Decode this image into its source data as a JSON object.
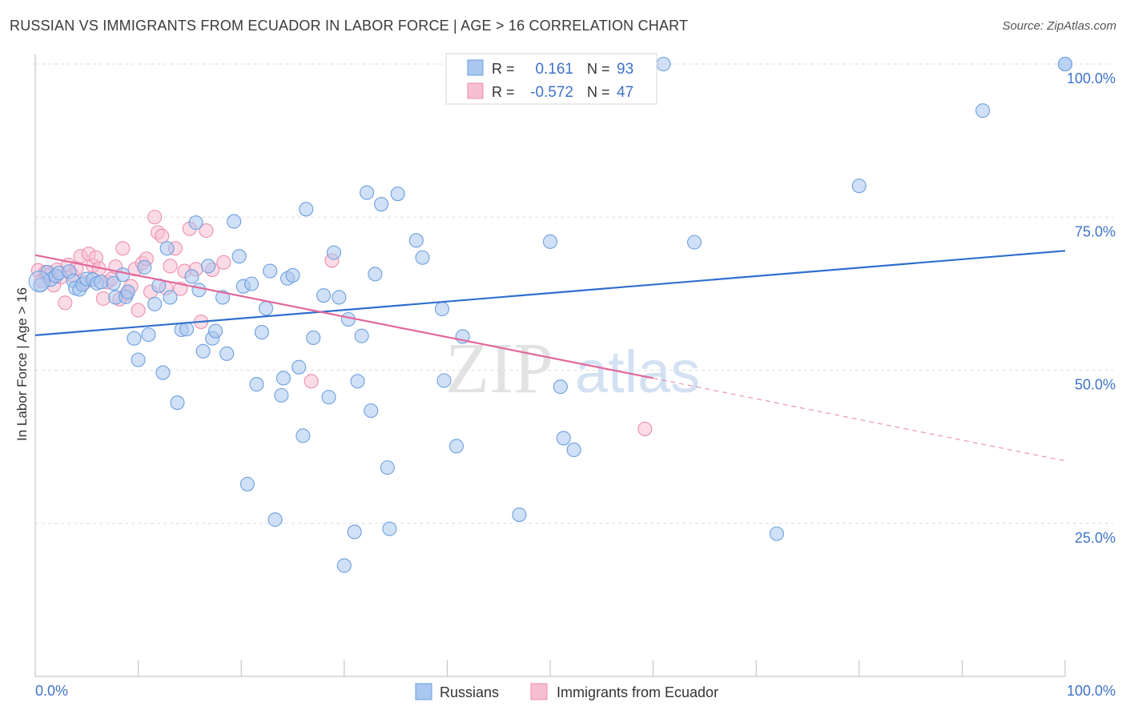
{
  "header": {
    "title": "RUSSIAN VS IMMIGRANTS FROM ECUADOR IN LABOR FORCE | AGE > 16 CORRELATION CHART",
    "source": "Source: ZipAtlas.com"
  },
  "watermark": {
    "zip": "ZIP",
    "atlas": "atlas"
  },
  "legend_box": {
    "rows": [
      {
        "r_label": "R =",
        "r_value": "0.161",
        "n_label": "N =",
        "n_value": "93"
      },
      {
        "r_label": "R =",
        "r_value": "-0.572",
        "n_label": "N =",
        "n_value": "47"
      }
    ]
  },
  "colors": {
    "russians_fill": "#a9c7ef",
    "russians_stroke": "#6d9fdf",
    "russians_line": "#2f6fcf",
    "ecuador_fill": "#f7bfd1",
    "ecuador_stroke": "#ec8fae",
    "ecuador_line": "#e2689a",
    "axis_label": "#3f73c9",
    "grid": "#dddddd"
  },
  "chart_data": {
    "type": "scatter",
    "ylabel": "In Labor Force | Age > 16",
    "xlim": [
      0,
      100
    ],
    "ylim": [
      0,
      100
    ],
    "x_tick_labels": [
      "0.0%",
      "100.0%"
    ],
    "y_ticks": [
      {
        "value": 25,
        "label": "25.0%"
      },
      {
        "value": 50,
        "label": "50.0%"
      },
      {
        "value": 75,
        "label": "75.0%"
      },
      {
        "value": 100,
        "label": "100.0%"
      }
    ],
    "grid": "horizontal dashed",
    "legend_position": "bottom",
    "series": [
      {
        "name": "Russians",
        "r": 0.161,
        "n": 93,
        "trend": {
          "x": [
            0,
            100
          ],
          "y": [
            55.7,
            69.5
          ]
        },
        "points": [
          [
            0.5,
            63.9
          ],
          [
            1.2,
            66.0
          ],
          [
            1.5,
            64.8
          ],
          [
            2,
            65.4
          ],
          [
            2.3,
            65.9
          ],
          [
            3.3,
            66.1
          ],
          [
            3.7,
            64.6
          ],
          [
            3.9,
            63.4
          ],
          [
            4.3,
            63.2
          ],
          [
            4.6,
            64.0
          ],
          [
            5.0,
            64.9
          ],
          [
            5.6,
            64.8
          ],
          [
            6.0,
            64.2
          ],
          [
            6.4,
            64.4
          ],
          [
            7.6,
            64.2
          ],
          [
            7.8,
            61.9
          ],
          [
            8.5,
            65.6
          ],
          [
            8.8,
            62.0
          ],
          [
            9.0,
            62.8
          ],
          [
            9.6,
            55.2
          ],
          [
            10.0,
            51.7
          ],
          [
            10.6,
            66.8
          ],
          [
            11.0,
            55.8
          ],
          [
            11.6,
            60.8
          ],
          [
            12.0,
            63.8
          ],
          [
            12.4,
            49.6
          ],
          [
            12.8,
            69.9
          ],
          [
            13.1,
            61.9
          ],
          [
            13.8,
            44.7
          ],
          [
            14.2,
            56.6
          ],
          [
            14.7,
            56.7
          ],
          [
            15.2,
            65.3
          ],
          [
            15.6,
            74.1
          ],
          [
            15.9,
            63.1
          ],
          [
            16.3,
            53.1
          ],
          [
            16.8,
            67.0
          ],
          [
            17.2,
            55.2
          ],
          [
            17.5,
            56.4
          ],
          [
            18.2,
            61.9
          ],
          [
            18.6,
            52.7
          ],
          [
            19.3,
            74.3
          ],
          [
            19.8,
            68.6
          ],
          [
            20.2,
            63.7
          ],
          [
            20.6,
            31.4
          ],
          [
            21.0,
            64.1
          ],
          [
            21.5,
            47.7
          ],
          [
            22.0,
            56.2
          ],
          [
            22.4,
            60.1
          ],
          [
            22.8,
            66.2
          ],
          [
            23.3,
            25.6
          ],
          [
            23.9,
            45.9
          ],
          [
            24.1,
            48.7
          ],
          [
            24.5,
            65.0
          ],
          [
            25.0,
            65.5
          ],
          [
            25.6,
            50.5
          ],
          [
            26.0,
            39.3
          ],
          [
            26.3,
            76.3
          ],
          [
            27.0,
            55.3
          ],
          [
            28.0,
            62.2
          ],
          [
            28.5,
            45.6
          ],
          [
            29.0,
            69.2
          ],
          [
            29.5,
            61.9
          ],
          [
            30.0,
            18.1
          ],
          [
            30.4,
            58.3
          ],
          [
            31.0,
            23.6
          ],
          [
            31.3,
            48.2
          ],
          [
            31.7,
            55.6
          ],
          [
            32.2,
            79.0
          ],
          [
            32.6,
            43.4
          ],
          [
            33.0,
            65.7
          ],
          [
            33.6,
            77.1
          ],
          [
            34.2,
            34.1
          ],
          [
            34.4,
            24.1
          ],
          [
            35.2,
            78.8
          ],
          [
            37.0,
            71.2
          ],
          [
            37.6,
            68.4
          ],
          [
            39.5,
            60.0
          ],
          [
            39.7,
            48.3
          ],
          [
            40.9,
            37.6
          ],
          [
            41.5,
            55.5
          ],
          [
            47.0,
            26.4
          ],
          [
            50.0,
            71.0
          ],
          [
            51.0,
            47.3
          ],
          [
            51.3,
            38.9
          ],
          [
            52.3,
            37.0
          ],
          [
            56.0,
            100.0
          ],
          [
            61.0,
            100.0
          ],
          [
            64.0,
            70.9
          ],
          [
            72.0,
            23.3
          ],
          [
            80.0,
            80.1
          ],
          [
            92.0,
            92.4
          ],
          [
            100.0,
            100.0
          ],
          [
            100.0,
            100.0
          ]
        ]
      },
      {
        "name": "Immigrants from Ecuador",
        "r": -0.572,
        "n": 47,
        "trend": {
          "x": [
            0,
            60
          ],
          "y": [
            68.8,
            48.7
          ]
        },
        "trend_extension": {
          "x": [
            60,
            100
          ],
          "y": [
            48.7,
            35.2
          ]
        },
        "points": [
          [
            0.3,
            66.3
          ],
          [
            0.6,
            64.6
          ],
          [
            1.0,
            66.0
          ],
          [
            1.4,
            65.6
          ],
          [
            1.8,
            63.9
          ],
          [
            2.1,
            66.4
          ],
          [
            2.5,
            65.2
          ],
          [
            2.9,
            61.0
          ],
          [
            3.2,
            67.2
          ],
          [
            3.6,
            65.5
          ],
          [
            4.0,
            66.6
          ],
          [
            4.4,
            68.6
          ],
          [
            4.8,
            64.3
          ],
          [
            5.2,
            69.0
          ],
          [
            5.6,
            67.1
          ],
          [
            5.9,
            68.4
          ],
          [
            6.2,
            66.6
          ],
          [
            6.6,
            61.7
          ],
          [
            7.0,
            64.4
          ],
          [
            7.4,
            64.9
          ],
          [
            7.8,
            66.9
          ],
          [
            8.2,
            61.6
          ],
          [
            8.5,
            69.9
          ],
          [
            8.9,
            62.5
          ],
          [
            9.3,
            63.7
          ],
          [
            9.7,
            66.5
          ],
          [
            10.0,
            59.8
          ],
          [
            10.4,
            67.5
          ],
          [
            10.8,
            68.2
          ],
          [
            11.2,
            62.8
          ],
          [
            11.6,
            75.0
          ],
          [
            11.9,
            72.5
          ],
          [
            12.3,
            71.9
          ],
          [
            12.7,
            63.4
          ],
          [
            13.1,
            67.0
          ],
          [
            13.6,
            69.9
          ],
          [
            14.1,
            63.3
          ],
          [
            14.5,
            66.2
          ],
          [
            15.0,
            73.1
          ],
          [
            15.6,
            66.5
          ],
          [
            16.1,
            57.9
          ],
          [
            16.6,
            72.8
          ],
          [
            17.2,
            66.4
          ],
          [
            18.3,
            67.6
          ],
          [
            26.8,
            48.2
          ],
          [
            28.8,
            67.9
          ],
          [
            59.2,
            40.4
          ]
        ]
      }
    ]
  }
}
